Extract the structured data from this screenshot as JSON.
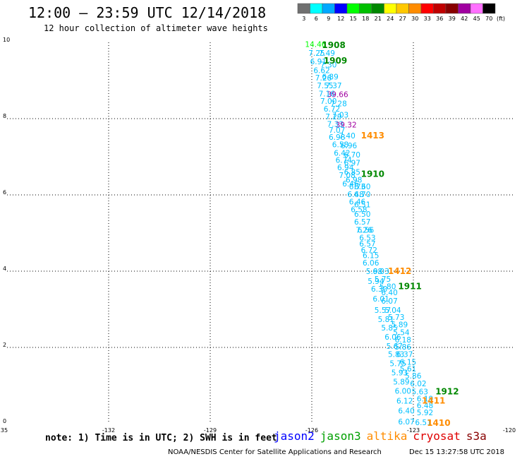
{
  "header": {
    "title": "12:00 – 23:59 UTC 12/14/2018",
    "subtitle": "12 hour collection of altimeter wave heights"
  },
  "legend": {
    "unit": "(ft)",
    "bins": [
      {
        "label": "3",
        "color": "#707070"
      },
      {
        "label": "6",
        "color": "#00ffff"
      },
      {
        "label": "9",
        "color": "#00a8ff"
      },
      {
        "label": "12",
        "color": "#0000ff"
      },
      {
        "label": "15",
        "color": "#00ff00"
      },
      {
        "label": "18",
        "color": "#00c000"
      },
      {
        "label": "21",
        "color": "#008800"
      },
      {
        "label": "24",
        "color": "#ffff00"
      },
      {
        "label": "27",
        "color": "#ffc800"
      },
      {
        "label": "30",
        "color": "#ff8c00"
      },
      {
        "label": "33",
        "color": "#ff0000"
      },
      {
        "label": "36",
        "color": "#c00000"
      },
      {
        "label": "39",
        "color": "#880000"
      },
      {
        "label": "42",
        "color": "#a000a0"
      },
      {
        "label": "45",
        "color": "#ff70ff"
      },
      {
        "label": "70",
        "color": "#000000"
      }
    ]
  },
  "footer": {
    "note": "note: 1) Time is in UTC; 2) SWH is in feet",
    "satellites": [
      {
        "name": "jason2",
        "color": "#0000ff"
      },
      {
        "name": "jason3",
        "color": "#00a000"
      },
      {
        "name": "altika",
        "color": "#ff8c00"
      },
      {
        "name": "cryosat",
        "color": "#e00000"
      },
      {
        "name": "s3a",
        "color": "#880000"
      }
    ],
    "credit": "NOAA/NESDIS Center for Satellite Applications and Research",
    "timestamp": "Dec 15 13:27:58 UTC 2018"
  },
  "chart_data": {
    "type": "scatter",
    "xlim": [
      -135,
      -120
    ],
    "ylim": [
      0,
      10
    ],
    "x_ticks": [
      -135,
      -132,
      -129,
      -126,
      -123,
      -120
    ],
    "y_ticks": [
      0,
      2,
      4,
      6,
      8,
      10
    ],
    "grid": true,
    "observations": [
      {
        "x": -126.2,
        "y": 9.95,
        "v": "14.46",
        "color": "#00ff00"
      },
      {
        "x": -126.1,
        "y": 9.72,
        "v": "7.25",
        "color": "#00c0ff"
      },
      {
        "x": -125.8,
        "y": 9.72,
        "v": "7.49",
        "color": "#00c0ff"
      },
      {
        "x": -126.05,
        "y": 9.5,
        "v": "6.91",
        "color": "#00c0ff"
      },
      {
        "x": -125.75,
        "y": 9.42,
        "v": "7.30",
        "color": "#00c0ff"
      },
      {
        "x": -125.95,
        "y": 9.27,
        "v": "6.62",
        "color": "#00c0ff"
      },
      {
        "x": -125.9,
        "y": 9.07,
        "v": "7.26",
        "color": "#00c0ff"
      },
      {
        "x": -125.7,
        "y": 9.1,
        "v": "6.89",
        "color": "#00c0ff"
      },
      {
        "x": -125.85,
        "y": 8.87,
        "v": "7.55",
        "color": "#00c0ff"
      },
      {
        "x": -125.6,
        "y": 8.87,
        "v": "7.37",
        "color": "#00c0ff"
      },
      {
        "x": -125.8,
        "y": 8.66,
        "v": "7.16",
        "color": "#00c0ff"
      },
      {
        "x": -125.55,
        "y": 8.64,
        "v": "39.66",
        "color": "#a000a0"
      },
      {
        "x": -125.75,
        "y": 8.46,
        "v": "7.00",
        "color": "#00c0ff"
      },
      {
        "x": -125.45,
        "y": 8.4,
        "v": "7.28",
        "color": "#00c0ff"
      },
      {
        "x": -125.65,
        "y": 8.26,
        "v": "6.72",
        "color": "#00c0ff"
      },
      {
        "x": -125.6,
        "y": 8.06,
        "v": "7.29",
        "color": "#00c0ff"
      },
      {
        "x": -125.4,
        "y": 8.1,
        "v": "7.03",
        "color": "#00c0ff"
      },
      {
        "x": -125.55,
        "y": 7.86,
        "v": "7.33",
        "color": "#00c0ff"
      },
      {
        "x": -125.3,
        "y": 7.84,
        "v": "39.32",
        "color": "#a000a0"
      },
      {
        "x": -125.5,
        "y": 7.7,
        "v": "7.07",
        "color": "#00c0ff"
      },
      {
        "x": -125.5,
        "y": 7.52,
        "v": "6.98",
        "color": "#00c0ff"
      },
      {
        "x": -125.2,
        "y": 7.56,
        "v": "7.40",
        "color": "#00c0ff"
      },
      {
        "x": -125.4,
        "y": 7.32,
        "v": "6.58",
        "color": "#00c0ff"
      },
      {
        "x": -125.15,
        "y": 7.3,
        "v": "6.96",
        "color": "#00c0ff"
      },
      {
        "x": -125.35,
        "y": 7.1,
        "v": "6.42",
        "color": "#00c0ff"
      },
      {
        "x": -125.05,
        "y": 7.06,
        "v": "6.70",
        "color": "#00c0ff"
      },
      {
        "x": -125.3,
        "y": 6.92,
        "v": "6.74",
        "color": "#00c0ff"
      },
      {
        "x": -125.05,
        "y": 6.84,
        "v": "6.97",
        "color": "#00c0ff"
      },
      {
        "x": -125.25,
        "y": 6.72,
        "v": "6.94",
        "color": "#00c0ff"
      },
      {
        "x": -125.05,
        "y": 6.6,
        "v": "6.85",
        "color": "#00c0ff"
      },
      {
        "x": -125.2,
        "y": 6.52,
        "v": "7.08",
        "color": "#00c0ff"
      },
      {
        "x": -125.0,
        "y": 6.4,
        "v": "6.98",
        "color": "#00c0ff"
      },
      {
        "x": -125.1,
        "y": 6.3,
        "v": "6.46",
        "color": "#00c0ff"
      },
      {
        "x": -124.9,
        "y": 6.22,
        "v": "6.73",
        "color": "#00c0ff"
      },
      {
        "x": -124.75,
        "y": 6.22,
        "v": "6.60",
        "color": "#00c0ff"
      },
      {
        "x": -124.95,
        "y": 6.02,
        "v": "6.48",
        "color": "#00c0ff"
      },
      {
        "x": -124.75,
        "y": 6.02,
        "v": "6.70",
        "color": "#00c0ff"
      },
      {
        "x": -124.9,
        "y": 5.82,
        "v": "6.46",
        "color": "#00c0ff"
      },
      {
        "x": -124.75,
        "y": 5.75,
        "v": "6.51",
        "color": "#00c0ff"
      },
      {
        "x": -124.85,
        "y": 5.62,
        "v": "6.58",
        "color": "#00c0ff"
      },
      {
        "x": -124.75,
        "y": 5.5,
        "v": "6.50",
        "color": "#00c0ff"
      },
      {
        "x": -124.75,
        "y": 5.3,
        "v": "6.57",
        "color": "#00c0ff"
      },
      {
        "x": -124.7,
        "y": 5.08,
        "v": "7.26",
        "color": "#00c0ff"
      },
      {
        "x": -124.65,
        "y": 5.08,
        "v": "6.56",
        "color": "#00c0ff"
      },
      {
        "x": -124.6,
        "y": 4.88,
        "v": "6.53",
        "color": "#00c0ff"
      },
      {
        "x": -124.6,
        "y": 4.72,
        "v": "6.57",
        "color": "#00c0ff"
      },
      {
        "x": -124.55,
        "y": 4.56,
        "v": "6.72",
        "color": "#00c0ff"
      },
      {
        "x": -124.5,
        "y": 4.42,
        "v": "6.15",
        "color": "#00c0ff"
      },
      {
        "x": -124.5,
        "y": 4.22,
        "v": "6.06",
        "color": "#00c0ff"
      },
      {
        "x": -124.4,
        "y": 4.0,
        "v": "5.98",
        "color": "#00c0ff"
      },
      {
        "x": -124.2,
        "y": 4.0,
        "v": "6.03",
        "color": "#00c0ff"
      },
      {
        "x": -124.15,
        "y": 3.8,
        "v": "5.75",
        "color": "#00c0ff"
      },
      {
        "x": -124.35,
        "y": 3.74,
        "v": "5.94",
        "color": "#00c0ff"
      },
      {
        "x": -124.0,
        "y": 3.6,
        "v": "5.80",
        "color": "#00c0ff"
      },
      {
        "x": -124.25,
        "y": 3.54,
        "v": "6.30",
        "color": "#00c0ff"
      },
      {
        "x": -123.95,
        "y": 3.44,
        "v": "6.40",
        "color": "#00c0ff"
      },
      {
        "x": -124.2,
        "y": 3.28,
        "v": "6.01",
        "color": "#00c0ff"
      },
      {
        "x": -123.95,
        "y": 3.22,
        "v": "6.07",
        "color": "#00c0ff"
      },
      {
        "x": -124.15,
        "y": 2.98,
        "v": "5.57",
        "color": "#00c0ff"
      },
      {
        "x": -123.85,
        "y": 2.98,
        "v": "5.04",
        "color": "#00c0ff"
      },
      {
        "x": -123.75,
        "y": 2.8,
        "v": "5.73",
        "color": "#00c0ff"
      },
      {
        "x": -124.05,
        "y": 2.74,
        "v": "5.81",
        "color": "#00c0ff"
      },
      {
        "x": -123.65,
        "y": 2.6,
        "v": "5.89",
        "color": "#00c0ff"
      },
      {
        "x": -123.95,
        "y": 2.52,
        "v": "5.85",
        "color": "#00c0ff"
      },
      {
        "x": -123.6,
        "y": 2.4,
        "v": "5.54",
        "color": "#00c0ff"
      },
      {
        "x": -123.85,
        "y": 2.28,
        "v": "6.06",
        "color": "#00c0ff"
      },
      {
        "x": -123.55,
        "y": 2.2,
        "v": "6.18",
        "color": "#00c0ff"
      },
      {
        "x": -123.8,
        "y": 2.04,
        "v": "5.67",
        "color": "#00c0ff"
      },
      {
        "x": -123.55,
        "y": 2.02,
        "v": "5.86",
        "color": "#00c0ff"
      },
      {
        "x": -123.75,
        "y": 1.82,
        "v": "5.83",
        "color": "#00c0ff"
      },
      {
        "x": -123.5,
        "y": 1.82,
        "v": "6.37",
        "color": "#00c0ff"
      },
      {
        "x": -123.4,
        "y": 1.62,
        "v": "6.15",
        "color": "#00c0ff"
      },
      {
        "x": -123.7,
        "y": 1.58,
        "v": "5.75",
        "color": "#00c0ff"
      },
      {
        "x": -123.4,
        "y": 1.44,
        "v": "5.61",
        "color": "#00c0ff"
      },
      {
        "x": -123.65,
        "y": 1.34,
        "v": "5.93",
        "color": "#00c0ff"
      },
      {
        "x": -123.25,
        "y": 1.26,
        "v": "5.86",
        "color": "#00c0ff"
      },
      {
        "x": -123.6,
        "y": 1.1,
        "v": "5.89",
        "color": "#00c0ff"
      },
      {
        "x": -123.1,
        "y": 1.06,
        "v": "6.02",
        "color": "#00c0ff"
      },
      {
        "x": -123.55,
        "y": 0.86,
        "v": "6.00",
        "color": "#00c0ff"
      },
      {
        "x": -123.05,
        "y": 0.84,
        "v": "5.63",
        "color": "#00c0ff"
      },
      {
        "x": -122.9,
        "y": 0.66,
        "v": "6.19",
        "color": "#00c0ff"
      },
      {
        "x": -123.5,
        "y": 0.6,
        "v": "6.12",
        "color": "#00c0ff"
      },
      {
        "x": -122.9,
        "y": 0.48,
        "v": "6.48",
        "color": "#00c0ff"
      },
      {
        "x": -123.45,
        "y": 0.34,
        "v": "6.40",
        "color": "#00c0ff"
      },
      {
        "x": -122.9,
        "y": 0.3,
        "v": "5.92",
        "color": "#00c0ff"
      },
      {
        "x": -123.45,
        "y": 0.06,
        "v": "6.07",
        "color": "#00c0ff"
      },
      {
        "x": -122.95,
        "y": 0.04,
        "v": "6.51",
        "color": "#00c0ff"
      }
    ],
    "pass_labels": [
      {
        "x": -125.7,
        "y": 9.93,
        "v": "1908",
        "color": "#008800"
      },
      {
        "x": -125.65,
        "y": 9.52,
        "v": "1909",
        "color": "#008800"
      },
      {
        "x": -124.55,
        "y": 7.56,
        "v": "1413",
        "color": "#ff8c00"
      },
      {
        "x": -124.55,
        "y": 6.55,
        "v": "1910",
        "color": "#008800"
      },
      {
        "x": -123.75,
        "y": 4.0,
        "v": "1412",
        "color": "#ff8c00"
      },
      {
        "x": -123.45,
        "y": 3.6,
        "v": "1911",
        "color": "#008800"
      },
      {
        "x": -122.35,
        "y": 0.84,
        "v": "1912",
        "color": "#008800"
      },
      {
        "x": -122.75,
        "y": 0.6,
        "v": "1411",
        "color": "#ff8c00"
      },
      {
        "x": -122.6,
        "y": 0.02,
        "v": "1410",
        "color": "#ff8c00"
      }
    ]
  }
}
